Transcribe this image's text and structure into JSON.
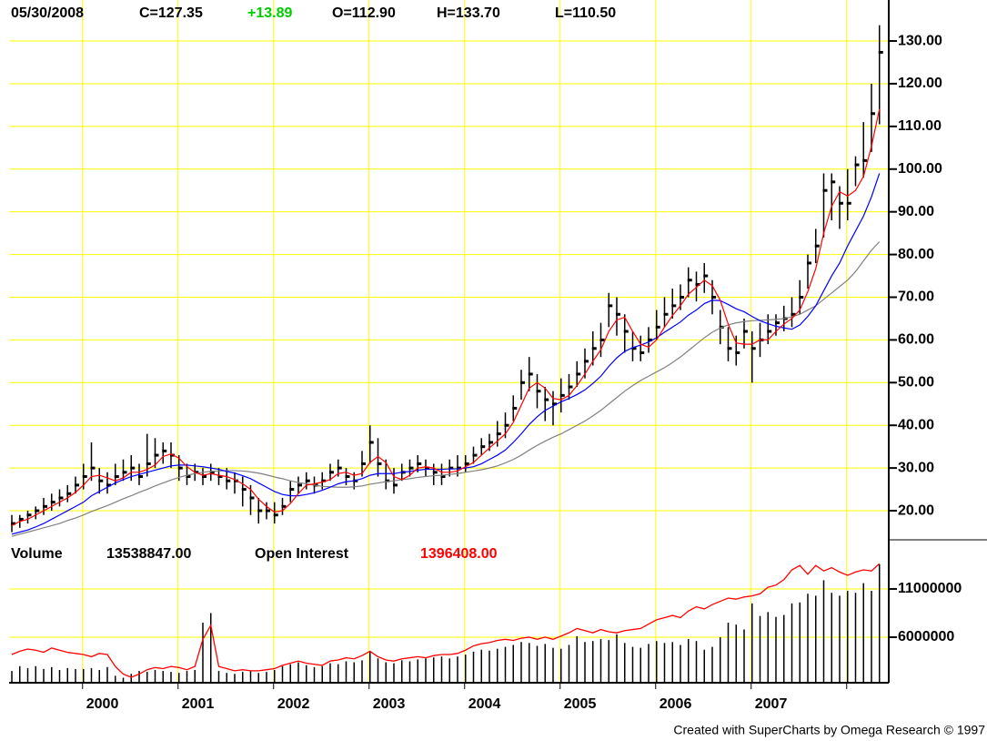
{
  "chart_data": [
    {
      "type": "ohlc",
      "header": {
        "date": "05/30/2008",
        "close": "C=127.35",
        "change": "+13.89",
        "change_color": "#00cc00",
        "open": "O=112.90",
        "high": "H=133.70",
        "low": "L=110.50"
      },
      "close": [
        17,
        18,
        19,
        20,
        21,
        22,
        23,
        24,
        26,
        28,
        30,
        27,
        26,
        28,
        29,
        30,
        28,
        31,
        33,
        34,
        33,
        30,
        28,
        29,
        28,
        29,
        28,
        27,
        27,
        25,
        23,
        20,
        20,
        19,
        21,
        25,
        26,
        27,
        26,
        27,
        29,
        30,
        28,
        27,
        31,
        36,
        31,
        27,
        26,
        29,
        30,
        31,
        30,
        29,
        28,
        30,
        30,
        31,
        33,
        35,
        36,
        38,
        40,
        44,
        50,
        52,
        48,
        46,
        45,
        47,
        49,
        52,
        55,
        58,
        60,
        68,
        66,
        62,
        58,
        57,
        60,
        63,
        66,
        68,
        70,
        74,
        73,
        75,
        70,
        63,
        58,
        57,
        62,
        58,
        60,
        62,
        64,
        65,
        66,
        70,
        78,
        82,
        95,
        97,
        92,
        92,
        101,
        102,
        113,
        127.35
      ],
      "high": [
        19,
        19,
        20,
        21,
        23,
        24,
        25,
        26,
        28,
        31,
        36,
        30,
        29,
        31,
        32,
        33,
        31,
        38,
        37,
        36,
        36,
        33,
        31,
        31,
        30,
        31,
        30,
        30,
        29,
        28,
        26,
        23,
        22,
        22,
        23,
        27,
        28,
        29,
        28,
        29,
        31,
        32,
        30,
        29,
        34,
        40,
        37,
        32,
        30,
        31,
        32,
        33,
        32,
        31,
        31,
        32,
        33,
        33,
        35,
        37,
        38,
        41,
        43,
        47,
        53,
        56,
        52,
        49,
        48,
        51,
        52,
        55,
        58,
        62,
        64,
        71,
        70,
        66,
        62,
        61,
        63,
        67,
        70,
        72,
        73,
        77,
        76,
        78,
        74,
        67,
        63,
        61,
        65,
        62,
        64,
        66,
        66,
        68,
        70,
        74,
        80,
        86,
        99,
        99,
        96,
        100,
        103,
        111,
        120,
        133.7
      ],
      "low": [
        15,
        16,
        17,
        18,
        19,
        20,
        21,
        22,
        24,
        25,
        27,
        24,
        24,
        26,
        27,
        27,
        26,
        28,
        30,
        31,
        30,
        27,
        26,
        27,
        26,
        27,
        26,
        25,
        24,
        21,
        19,
        17,
        18,
        17,
        19,
        22,
        24,
        25,
        24,
        25,
        27,
        28,
        26,
        25,
        28,
        31,
        28,
        25,
        24,
        27,
        28,
        29,
        28,
        26,
        26,
        28,
        28,
        29,
        31,
        33,
        34,
        35,
        37,
        41,
        46,
        48,
        44,
        41,
        40,
        43,
        46,
        49,
        51,
        54,
        56,
        63,
        61,
        57,
        55,
        55,
        57,
        60,
        63,
        65,
        67,
        70,
        69,
        71,
        66,
        59,
        55,
        54,
        58,
        50,
        56,
        59,
        61,
        62,
        63,
        66,
        72,
        78,
        84,
        88,
        86,
        88,
        96,
        98,
        104,
        110.5
      ],
      "bar_color": "#000000",
      "series": [
        {
          "color": "#808080",
          "values": [
            14,
            14.5,
            15,
            15.5,
            16,
            16.5,
            17,
            17.7,
            18.3,
            19,
            19.8,
            20.5,
            21.2,
            22,
            22.8,
            23.5,
            24.3,
            25,
            25.8,
            26.5,
            27.2,
            27.8,
            28.3,
            28.7,
            29,
            29.2,
            29.3,
            29.4,
            29.4,
            29.3,
            29.1,
            28.8,
            28.4,
            27.9,
            27.5,
            27,
            26.6,
            26.3,
            26,
            25.7,
            25.6,
            25.5,
            25.5,
            25.6,
            25.8,
            26.2,
            26.5,
            26.8,
            27,
            27.3,
            27.5,
            27.8,
            28,
            28.2,
            28.3,
            28.5,
            28.7,
            29,
            29.3,
            29.6,
            30,
            30.5,
            31.2,
            32,
            33,
            34.2,
            35.3,
            36.3,
            37.2,
            38,
            39,
            40,
            41,
            42.2,
            43.5,
            45,
            46.5,
            48,
            49.3,
            50.5,
            51.5,
            52.5,
            53.5,
            54.7,
            56,
            57.5,
            59,
            60.5,
            61.8,
            62.8,
            63.5,
            64,
            64.3,
            64.5,
            64.6,
            64.7,
            64.8,
            65,
            65.4,
            66,
            67,
            68,
            69.5,
            71,
            72.5,
            74,
            76,
            78.5,
            81,
            83
          ]
        },
        {
          "color": "#0000ff",
          "values": [
            14.5,
            15,
            15.5,
            16.2,
            17,
            18,
            19,
            20,
            21,
            22,
            23.5,
            24.5,
            25.5,
            26.5,
            27.3,
            28,
            28.5,
            29,
            29.5,
            30,
            30.5,
            30.7,
            30.7,
            30.5,
            30.3,
            30,
            29.7,
            29.2,
            28.8,
            28.2,
            27.5,
            26.5,
            25.5,
            24.5,
            23.8,
            23.5,
            23.5,
            23.8,
            24.2,
            24.8,
            25.5,
            26.3,
            26.8,
            27,
            27.5,
            28.3,
            28.7,
            28.7,
            28.7,
            29,
            29.2,
            29.5,
            29.7,
            29.7,
            29.7,
            29.8,
            29.8,
            30,
            30.3,
            31,
            32,
            33,
            34.2,
            36,
            38,
            40.2,
            42,
            43.5,
            44.5,
            45.5,
            46.3,
            47.2,
            48.3,
            49.8,
            51.5,
            53.8,
            55.8,
            57.3,
            58.2,
            58.8,
            59.5,
            60.5,
            61.8,
            63,
            64.2,
            65.8,
            67,
            68.5,
            69.3,
            69.2,
            68.3,
            67.3,
            66.6,
            65.5,
            64.5,
            63.8,
            63.2,
            62.8,
            62.5,
            63.5,
            65.5,
            68,
            71.5,
            75,
            78,
            82,
            85.5,
            89,
            93.5,
            99
          ]
        },
        {
          "color": "#ff0000",
          "values": [
            16.5,
            17.5,
            18,
            19,
            20,
            21,
            22,
            23,
            24.3,
            26,
            28,
            28.3,
            27.7,
            27,
            27.7,
            29,
            29,
            29.7,
            30.7,
            32.7,
            33.3,
            32.3,
            30.3,
            29,
            28.3,
            28.7,
            28.3,
            28,
            27.3,
            26.3,
            25,
            22.7,
            21,
            19.7,
            20,
            21.7,
            24,
            26,
            26.3,
            26.7,
            27.3,
            28.7,
            29,
            28.3,
            28.7,
            31.3,
            32.7,
            31.3,
            28,
            27.3,
            28.3,
            30,
            30.3,
            30,
            29,
            29,
            29.3,
            30.3,
            31.3,
            33,
            34.7,
            36.3,
            38,
            40.7,
            44.7,
            48.7,
            50,
            48.7,
            46.3,
            46,
            47,
            49.3,
            52,
            55,
            57.7,
            62,
            64.7,
            65.3,
            62,
            59,
            58.3,
            60,
            63,
            65.7,
            68,
            70.7,
            72.3,
            74,
            72.7,
            69.3,
            63.7,
            59.3,
            59,
            59,
            60,
            60,
            62,
            63.7,
            65,
            67,
            71.3,
            76.7,
            85,
            91.3,
            94.7,
            93.7,
            95,
            98.3,
            105.3,
            114.1
          ]
        }
      ],
      "ylim": [
        13.4,
        139.6
      ],
      "yticks": [
        {
          "value": 20,
          "label": "20.00"
        },
        {
          "value": 30,
          "label": "30.00"
        },
        {
          "value": 40,
          "label": "40.00"
        },
        {
          "value": 50,
          "label": "50.00"
        },
        {
          "value": 60,
          "label": "60.00"
        },
        {
          "value": 70,
          "label": "70.00"
        },
        {
          "value": 80,
          "label": "80.00"
        },
        {
          "value": 90,
          "label": "90.00"
        },
        {
          "value": 100,
          "label": "100.00"
        },
        {
          "value": 110,
          "label": "110.00"
        },
        {
          "value": 120,
          "label": "120.00"
        },
        {
          "value": 130,
          "label": "130.00"
        }
      ],
      "grid": true,
      "grid_color": "#ffff00"
    },
    {
      "type": "bar",
      "header": {
        "volume_label": "Volume",
        "volume": "13538847.00",
        "oi_label": "Open Interest",
        "oi": "1396408.00",
        "oi_color": "#ff0000"
      },
      "categories": [
        null,
        null,
        null,
        null,
        null,
        null,
        null,
        null,
        null,
        "2000",
        null,
        null,
        null,
        null,
        null,
        null,
        null,
        null,
        null,
        null,
        null,
        "2001",
        null,
        null,
        null,
        null,
        null,
        null,
        null,
        null,
        null,
        null,
        null,
        "2002",
        null,
        null,
        null,
        null,
        null,
        null,
        null,
        null,
        null,
        null,
        null,
        "2003",
        null,
        null,
        null,
        null,
        null,
        null,
        null,
        null,
        null,
        null,
        null,
        "2004",
        null,
        null,
        null,
        null,
        null,
        null,
        null,
        null,
        null,
        null,
        null,
        "2005",
        null,
        null,
        null,
        null,
        null,
        null,
        null,
        null,
        null,
        null,
        null,
        "2006",
        null,
        null,
        null,
        null,
        null,
        null,
        null,
        null,
        null,
        null,
        null,
        "2007",
        null,
        null,
        null,
        null,
        null,
        null,
        null,
        null,
        null,
        null,
        null,
        null,
        null,
        null,
        null,
        null
      ],
      "values": [
        2500000,
        3000000,
        2800000,
        3000000,
        2700000,
        2900000,
        2600000,
        2800000,
        2700000,
        2700000,
        2800000,
        2600000,
        2900000,
        2000000,
        1800000,
        2200000,
        2500000,
        2400000,
        2600000,
        2500000,
        2400000,
        2300000,
        2500000,
        2600000,
        7500000,
        8500000,
        2500000,
        2300000,
        2200000,
        2400000,
        2500000,
        2300000,
        2400000,
        2600000,
        3000000,
        3200000,
        3400000,
        3100000,
        2900000,
        3000000,
        3300000,
        3200000,
        3500000,
        3400000,
        3600000,
        4500000,
        3800000,
        3400000,
        3300000,
        3600000,
        3500000,
        3700000,
        3800000,
        3900000,
        4000000,
        3800000,
        4000000,
        4200000,
        4500000,
        4700000,
        4600000,
        4800000,
        5000000,
        5200000,
        5500000,
        5400000,
        5100000,
        5300000,
        4900000,
        4800000,
        5200000,
        6100000,
        5500000,
        5600000,
        5800000,
        5700000,
        6300000,
        5400000,
        5000000,
        4900000,
        5300000,
        5600000,
        5400000,
        5500000,
        5200000,
        5800000,
        5600000,
        4700000,
        5000000,
        6000000,
        7500000,
        7300000,
        6800000,
        9500000,
        8200000,
        8600000,
        8100000,
        8300000,
        9500000,
        9600000,
        10500000,
        10300000,
        11900000,
        10600000,
        10300000,
        10800000,
        10600000,
        11600000,
        10800000,
        13538847
      ],
      "color": "#000000",
      "series": [
        {
          "color": "#ff0000",
          "axis": "y2",
          "values": [
            560000,
            590000,
            610000,
            600000,
            580000,
            620000,
            600000,
            580000,
            570000,
            560000,
            540000,
            570000,
            560000,
            450000,
            380000,
            350000,
            380000,
            420000,
            440000,
            430000,
            450000,
            440000,
            420000,
            450000,
            700000,
            830000,
            450000,
            430000,
            410000,
            420000,
            410000,
            410000,
            420000,
            430000,
            460000,
            480000,
            500000,
            480000,
            470000,
            460000,
            500000,
            510000,
            530000,
            520000,
            550000,
            590000,
            540000,
            510000,
            500000,
            520000,
            530000,
            540000,
            530000,
            550000,
            560000,
            560000,
            570000,
            600000,
            640000,
            660000,
            670000,
            690000,
            700000,
            690000,
            710000,
            720000,
            700000,
            720000,
            700000,
            730000,
            760000,
            800000,
            780000,
            760000,
            790000,
            770000,
            760000,
            780000,
            790000,
            800000,
            840000,
            880000,
            900000,
            920000,
            900000,
            960000,
            1000000,
            980000,
            1020000,
            1050000,
            1080000,
            1070000,
            1090000,
            1100000,
            1120000,
            1180000,
            1200000,
            1250000,
            1340000,
            1380000,
            1300000,
            1380000,
            1330000,
            1360000,
            1320000,
            1290000,
            1320000,
            1340000,
            1330000,
            1396408
          ]
        }
      ],
      "ylim": [
        1280000,
        15900000
      ],
      "yticks": [
        6000000,
        11000000
      ],
      "y2lim": [
        300000,
        1600000
      ],
      "grid": true,
      "grid_color": "#ffff00"
    }
  ],
  "footer": "Created with SuperCharts by Omega Research © 1997"
}
